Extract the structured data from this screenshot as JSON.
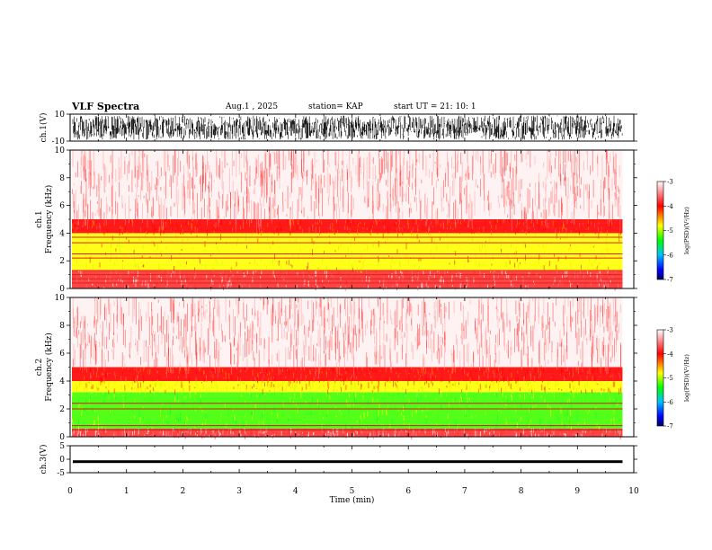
{
  "header": {
    "title": "VLF Spectra",
    "date": "Aug.1 , 2025",
    "station": "station= KAP",
    "start": "start UT = 21: 10: 1"
  },
  "chart_data": [
    {
      "type": "line",
      "panel": "ch1-waveform",
      "ylabel": "ch.1(V)",
      "ylim": [
        -10,
        10
      ],
      "y_ticks": [
        "10",
        "-10"
      ],
      "xlim": [
        0,
        10
      ],
      "description_of_data": "noise waveform filling most of the range, from 0 to 9.8 min",
      "x_end": 9.8,
      "amplitude_range": [
        -9,
        9
      ]
    },
    {
      "type": "heatmap",
      "panel": "ch1-spectrogram",
      "ylabel": "ch.1 Frequency (kHz)",
      "ylim": [
        0,
        10
      ],
      "y_ticks": [
        "0",
        "2",
        "4",
        "6",
        "8",
        "10"
      ],
      "xlim": [
        0,
        10
      ],
      "x_end": 9.8,
      "bands": [
        {
          "f_low": 0,
          "f_high": 1.3,
          "level": "red-stripes"
        },
        {
          "f_low": 1.3,
          "f_high": 4.0,
          "level": "yellow"
        },
        {
          "f_low": 4.0,
          "f_high": 5.0,
          "level": "red"
        },
        {
          "f_low": 5.0,
          "f_high": 10,
          "level": "sparse-red"
        }
      ],
      "line_freqs_khz": [
        0.4,
        0.7,
        1.0,
        1.3,
        2.2,
        2.5,
        3.3,
        3.7
      ],
      "colorbar": {
        "label": "log(PSD)(V²/Hz)",
        "range": [
          -7,
          -3
        ],
        "ticks": [
          "-3",
          "-4",
          "-5",
          "-6",
          "-7"
        ],
        "colors": [
          "#ffffff",
          "#ff0000",
          "#ffff00",
          "#00ff00",
          "#00c0ff",
          "#0000ff",
          "#000060"
        ]
      }
    },
    {
      "type": "heatmap",
      "panel": "ch2-spectrogram",
      "ylabel": "ch.2 Frequency (kHz)",
      "ylim": [
        0,
        10
      ],
      "y_ticks": [
        "0",
        "2",
        "4",
        "6",
        "8",
        "10"
      ],
      "xlim": [
        0,
        10
      ],
      "x_end": 9.8,
      "bands": [
        {
          "f_low": 0,
          "f_high": 0.6,
          "level": "red-stripes"
        },
        {
          "f_low": 0.6,
          "f_high": 3.2,
          "level": "green"
        },
        {
          "f_low": 3.2,
          "f_high": 4.0,
          "level": "yellow"
        },
        {
          "f_low": 4.0,
          "f_high": 5.0,
          "level": "red"
        },
        {
          "f_low": 5.0,
          "f_high": 10,
          "level": "sparse-red"
        }
      ],
      "line_freqs_khz": [
        0.5,
        0.8,
        2.0,
        2.4
      ],
      "colorbar": {
        "label": "log(PSD)(V²/Hz)",
        "range": [
          -7,
          -3
        ],
        "ticks": [
          "-3",
          "-4",
          "-5",
          "-6",
          "-7"
        ]
      }
    },
    {
      "type": "line",
      "panel": "ch3-waveform",
      "ylabel": "ch.3(V)",
      "ylim": [
        -5,
        5
      ],
      "y_ticks": [
        "5",
        "0",
        "-5"
      ],
      "xlim": [
        0,
        10
      ],
      "x_end": 9.8,
      "level_band": [
        -1.4,
        -0.4
      ],
      "xlabel": "Time (min)",
      "x_ticks": [
        "0",
        "1",
        "2",
        "3",
        "4",
        "5",
        "6",
        "7",
        "8",
        "9",
        "10"
      ]
    }
  ]
}
